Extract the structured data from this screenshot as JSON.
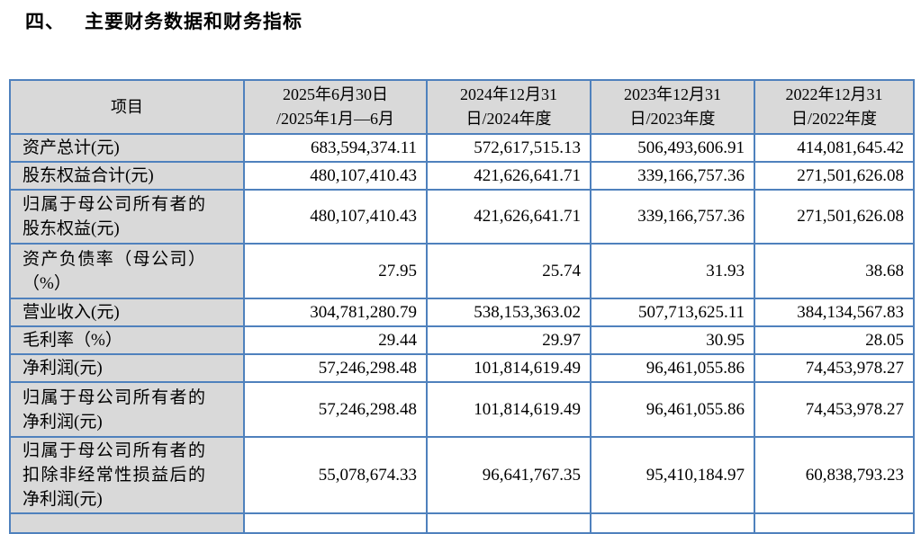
{
  "heading": {
    "index": "四、",
    "title": "主要财务数据和财务指标"
  },
  "colors": {
    "table_border": "#4f81bd",
    "header_background": "#d9d9d9",
    "label_column_background": "#d9d9d9",
    "value_cell_background": "#ffffff",
    "text": "#000000"
  },
  "table": {
    "columns": [
      {
        "label": "项目"
      },
      {
        "label": "2025年6月30日\n/2025年1月—6月"
      },
      {
        "label": "2024年12月31\n日/2024年度"
      },
      {
        "label": "2023年12月31\n日/2023年度"
      },
      {
        "label": "2022年12月31\n日/2022年度"
      }
    ],
    "rows": [
      {
        "label": "资产总计(元)",
        "values": [
          "683,594,374.11",
          "572,617,515.13",
          "506,493,606.91",
          "414,081,645.42"
        ]
      },
      {
        "label": "股东权益合计(元)",
        "values": [
          "480,107,410.43",
          "421,626,641.71",
          "339,166,757.36",
          "271,501,626.08"
        ]
      },
      {
        "label": "归属于母公司所有者的股东权益(元)",
        "values": [
          "480,107,410.43",
          "421,626,641.71",
          "339,166,757.36",
          "271,501,626.08"
        ]
      },
      {
        "label": "资产负债率（母公司）（%）",
        "values": [
          "27.95",
          "25.74",
          "31.93",
          "38.68"
        ]
      },
      {
        "label": "营业收入(元)",
        "values": [
          "304,781,280.79",
          "538,153,363.02",
          "507,713,625.11",
          "384,134,567.83"
        ]
      },
      {
        "label": "毛利率（%）",
        "values": [
          "29.44",
          "29.97",
          "30.95",
          "28.05"
        ]
      },
      {
        "label": "净利润(元)",
        "values": [
          "57,246,298.48",
          "101,814,619.49",
          "96,461,055.86",
          "74,453,978.27"
        ]
      },
      {
        "label": "归属于母公司所有者的净利润(元)",
        "values": [
          "57,246,298.48",
          "101,814,619.49",
          "96,461,055.86",
          "74,453,978.27"
        ]
      },
      {
        "label": "归属于母公司所有者的扣除非经常性损益后的净利润(元)",
        "values": [
          "55,078,674.33",
          "96,641,767.35",
          "95,410,184.97",
          "60,838,793.23"
        ]
      },
      {
        "label": "",
        "values": [
          "",
          "",
          "",
          ""
        ]
      }
    ]
  }
}
